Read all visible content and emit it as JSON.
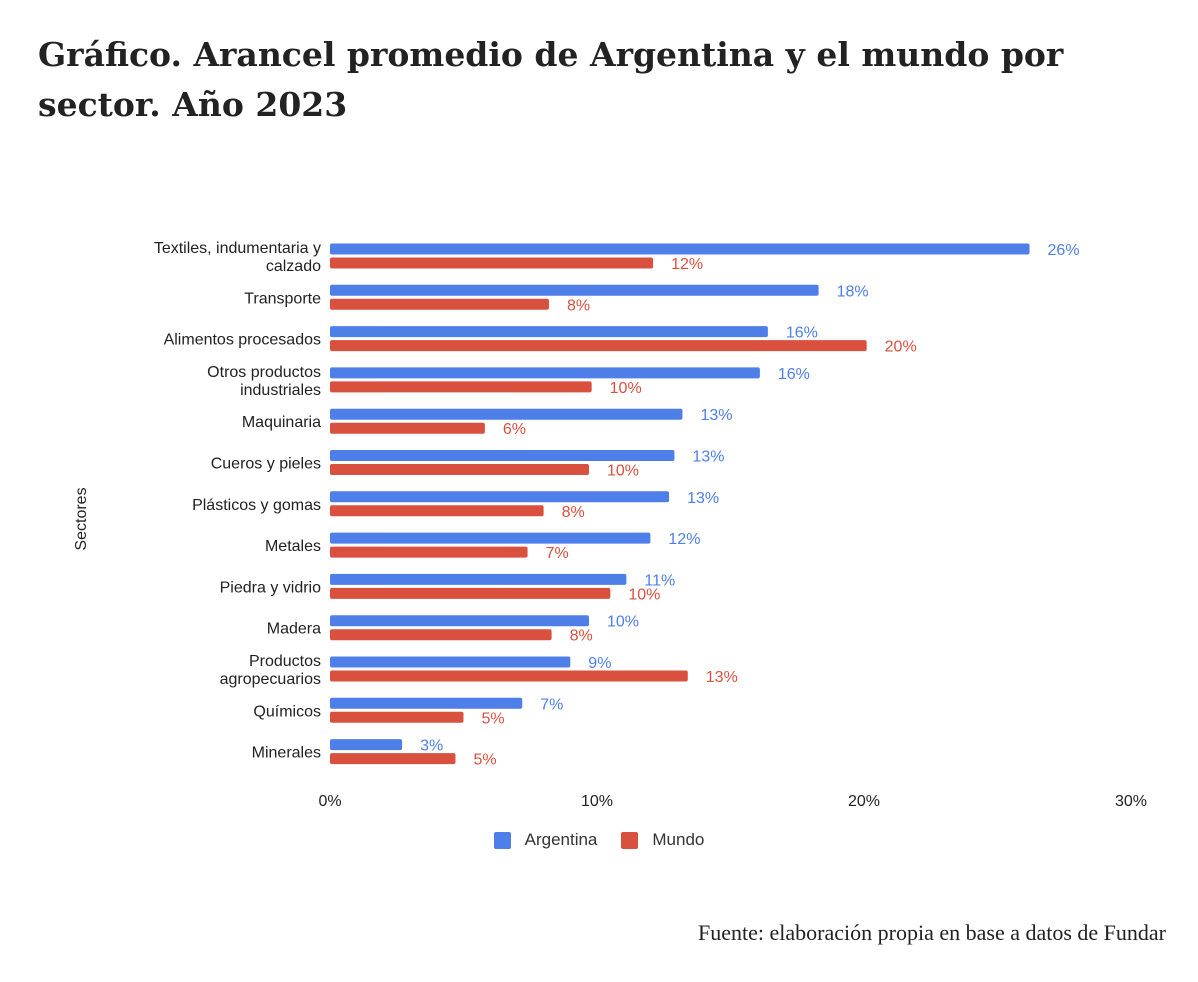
{
  "title": "Gráfico. Arancel promedio de Argentina y el mundo por sector. Año 2023",
  "source": "Fuente: elaboración propia en base a datos de Fundar",
  "colors": {
    "argentina": "#4e7fe8",
    "mundo": "#d9503f",
    "text": "#222222"
  },
  "chart_data": {
    "type": "bar",
    "orientation": "horizontal",
    "ylabel": "Sectores",
    "xlabel": "",
    "xlim": [
      0,
      30
    ],
    "xticks": [
      "0%",
      "10%",
      "20%",
      "30%"
    ],
    "grid": false,
    "legend_position": "bottom",
    "categories": [
      "Textiles, indumentaria y calzado",
      "Transporte",
      "Alimentos procesados",
      "Otros productos industriales",
      "Maquinaria",
      "Cueros y pieles",
      "Plásticos y gomas",
      "Metales",
      "Piedra y vidrio",
      "Madera",
      "Productos agropecuarios",
      "Químicos",
      "Minerales"
    ],
    "category_lines": [
      [
        "Textiles, indumentaria y",
        "calzado"
      ],
      [
        "Transporte"
      ],
      [
        "Alimentos procesados"
      ],
      [
        "Otros productos",
        "industriales"
      ],
      [
        "Maquinaria"
      ],
      [
        "Cueros y pieles"
      ],
      [
        "Plásticos y gomas"
      ],
      [
        "Metales"
      ],
      [
        "Piedra y vidrio"
      ],
      [
        "Madera"
      ],
      [
        "Productos",
        "agropecuarios"
      ],
      [
        "Químicos"
      ],
      [
        "Minerales"
      ]
    ],
    "series": [
      {
        "name": "Argentina",
        "values": [
          26.2,
          18.3,
          16.4,
          16.1,
          13.2,
          12.9,
          12.7,
          12.0,
          11.1,
          9.7,
          9.0,
          7.2,
          2.7
        ],
        "labels": [
          "26%",
          "18%",
          "16%",
          "16%",
          "13%",
          "13%",
          "13%",
          "12%",
          "11%",
          "10%",
          "9%",
          "7%",
          "3%"
        ]
      },
      {
        "name": "Mundo",
        "values": [
          12.1,
          8.2,
          20.1,
          9.8,
          5.8,
          9.7,
          8.0,
          7.4,
          10.5,
          8.3,
          13.4,
          5.0,
          4.7
        ],
        "labels": [
          "12%",
          "8%",
          "20%",
          "10%",
          "6%",
          "10%",
          "8%",
          "7%",
          "10%",
          "8%",
          "13%",
          "5%",
          "5%"
        ]
      }
    ]
  }
}
